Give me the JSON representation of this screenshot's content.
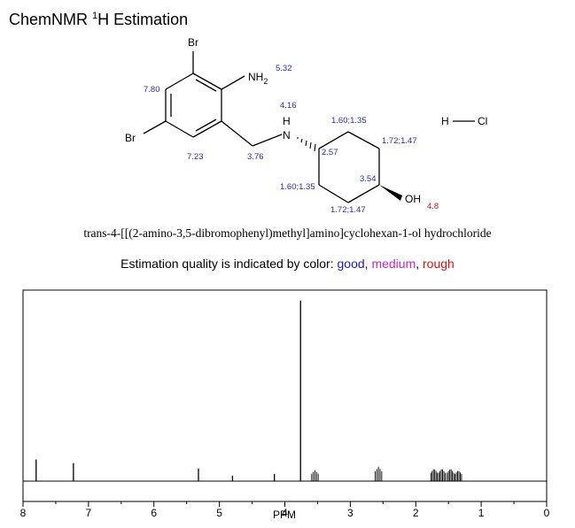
{
  "header": {
    "title_prefix": "ChemNMR ",
    "title_sup": "1",
    "title_suffix": "H Estimation"
  },
  "molecule": {
    "atoms": {
      "br_top": "Br",
      "br_left": "Br",
      "nh2": "NH",
      "nh2_sub": "2",
      "nh": "N",
      "nh_h": "H",
      "oh": "OH",
      "hcl_h": "H",
      "hcl_cl": "Cl"
    },
    "shifts": {
      "nh2": "5.32",
      "ar_h_top": "7.80",
      "ar_h_bottom": "7.23",
      "ch2": "3.76",
      "nh": "4.16",
      "c2_top": "1.60;1.35",
      "c3_top": "1.72;1.47",
      "c1": "2.57",
      "c4": "3.54",
      "c2_bottom": "1.60;1.35",
      "c3_bottom": "1.72;1.47",
      "oh": "4.8"
    },
    "compound_name": "trans-4-[[(2-amino-3,5-dibromophenyl)methyl]amino]cyclohexan-1-ol hydrochloride"
  },
  "legend": {
    "prefix": "Estimation quality is indicated by color: ",
    "good": "good",
    "sep1": ", ",
    "medium": "medium",
    "sep2": ", ",
    "rough": "rough"
  },
  "colors": {
    "good": "#1a1acc",
    "medium": "#cc22cc",
    "rough": "#dd1111"
  },
  "chart_data": {
    "type": "line",
    "xlabel": "PPM",
    "xlim": [
      8,
      0
    ],
    "x_ticks": [
      "8",
      "7",
      "6",
      "5",
      "4",
      "3",
      "2",
      "1",
      "0"
    ],
    "peaks": [
      {
        "ppm": 7.8,
        "height": 0.12,
        "mult": 1
      },
      {
        "ppm": 7.23,
        "height": 0.1,
        "mult": 1
      },
      {
        "ppm": 5.32,
        "height": 0.07,
        "mult": 1
      },
      {
        "ppm": 4.8,
        "height": 0.03,
        "mult": 1
      },
      {
        "ppm": 4.16,
        "height": 0.04,
        "mult": 1
      },
      {
        "ppm": 3.76,
        "height": 1.0,
        "mult": 1
      },
      {
        "ppm": 3.54,
        "height": 0.06,
        "mult": 5
      },
      {
        "ppm": 2.57,
        "height": 0.08,
        "mult": 5
      },
      {
        "ppm": 1.72,
        "height": 0.07,
        "mult": 6
      },
      {
        "ppm": 1.6,
        "height": 0.07,
        "mult": 6
      },
      {
        "ppm": 1.47,
        "height": 0.07,
        "mult": 6
      },
      {
        "ppm": 1.35,
        "height": 0.06,
        "mult": 6
      }
    ]
  }
}
